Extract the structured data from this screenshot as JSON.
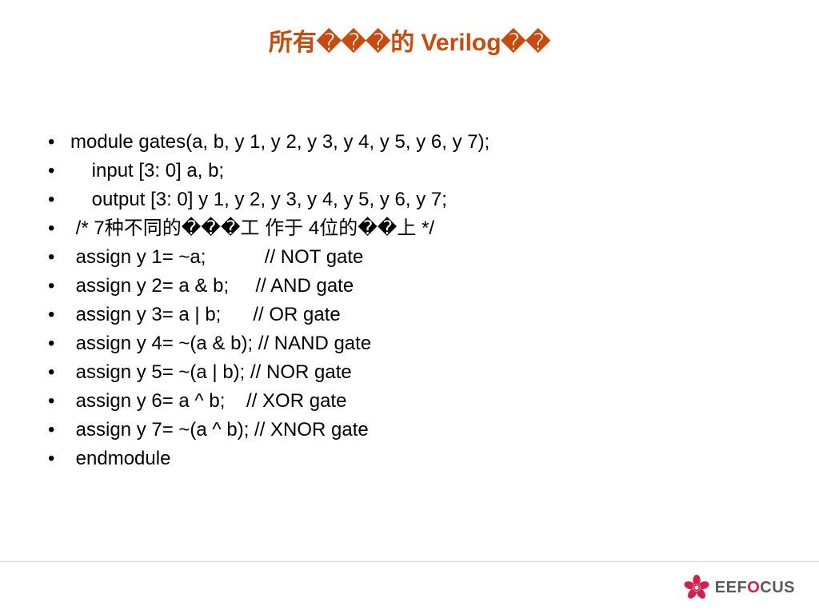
{
  "title": "所有���的 Verilog��",
  "title_color": "#c84a0c",
  "bullet_char": "•",
  "lines": [
    "module gates(a, b, y 1, y 2, y 3, y 4, y 5, y 6, y 7);",
    "    input [3: 0] a, b;",
    "    output [3: 0] y 1, y 2, y 3, y 4, y 5, y 6, y 7;",
    " /* 7种不同的���工 作于 4位的��上  */",
    " assign y 1= ~a;           // NOT gate",
    " assign y 2= a & b;     // AND gate",
    " assign y 3= a | b;      //  OR gate",
    " assign y 4= ~(a & b); // NAND gate",
    " assign y 5= ~(a | b);  // NOR gate",
    " assign y 6= a ^ b;    // XOR gate",
    " assign y 7= ~(a ^ b); // XNOR gate",
    " endmodule"
  ],
  "text_color": "#000000",
  "body_fontsize": 24,
  "line_height": 1.5,
  "footer": {
    "border_color": "#d8d4cf",
    "logo_text_gray": "EEF",
    "logo_text_accent": "O",
    "logo_text_gray2": "CUS",
    "brand_accent": "#d6204b",
    "brand_gray": "#5a5a5a"
  }
}
